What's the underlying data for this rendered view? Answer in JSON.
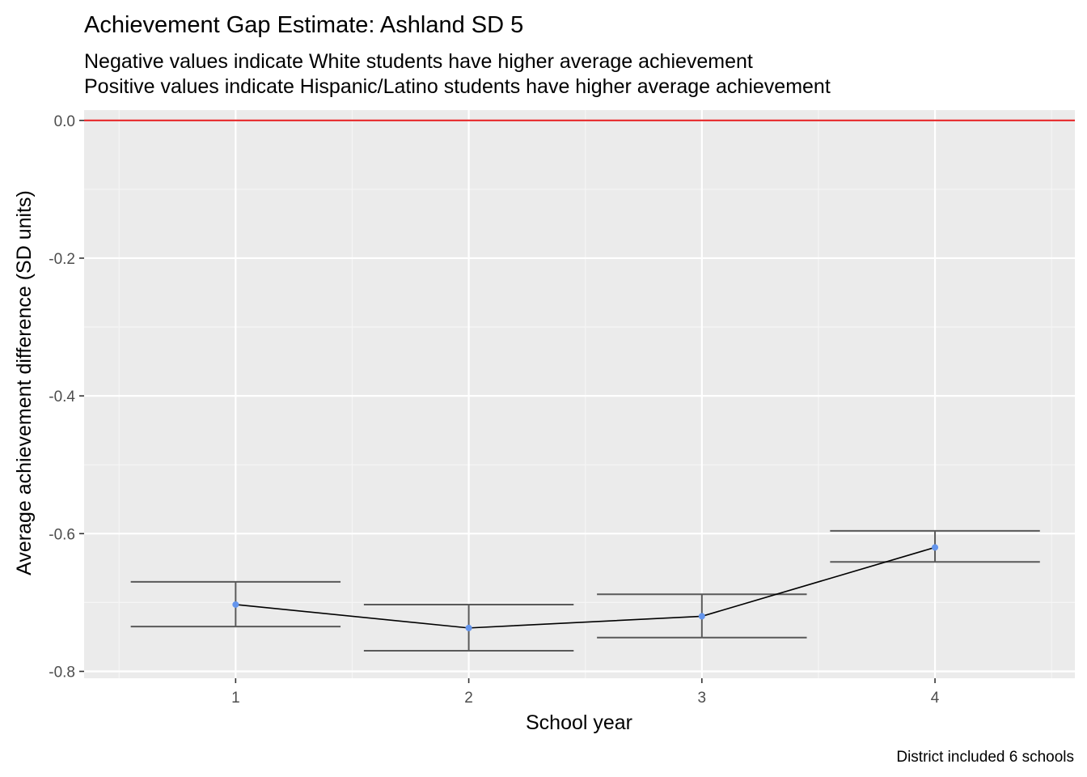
{
  "chart_data": {
    "type": "line",
    "title": "Achievement Gap Estimate: Ashland SD 5",
    "subtitle": [
      "Negative values indicate White students have higher average achievement",
      "Positive values indicate Hispanic/Latino students have higher average achievement"
    ],
    "xlabel": "School year",
    "ylabel": "Average achievement difference (SD units)",
    "caption": "District included 6 schools",
    "x": [
      1,
      2,
      3,
      4
    ],
    "x_tick_labels": [
      "1",
      "2",
      "3",
      "4"
    ],
    "y_tick_values": [
      0.0,
      -0.2,
      -0.4,
      -0.6,
      -0.8
    ],
    "y_tick_labels": [
      "0.0",
      "-0.2",
      "-0.4",
      "-0.6",
      "-0.8"
    ],
    "xlim": [
      0.35,
      4.6
    ],
    "ylim": [
      -0.81,
      0.015
    ],
    "series": [
      {
        "values": [
          -0.703,
          -0.737,
          -0.72,
          -0.62
        ],
        "error_low": [
          -0.735,
          -0.77,
          -0.751,
          -0.641
        ],
        "error_high": [
          -0.67,
          -0.703,
          -0.688,
          -0.596
        ]
      }
    ],
    "reference_line": {
      "y": 0.0,
      "color": "#e41a1c"
    },
    "grid": true,
    "legend": "none",
    "colors": {
      "panel_background": "#ebebeb",
      "grid_major": "#ffffff",
      "grid_minor": "#f5f5f5",
      "point": "#6495ed",
      "line": "#000000",
      "errorbar": "#595959",
      "reference": "#e41a1c"
    }
  }
}
